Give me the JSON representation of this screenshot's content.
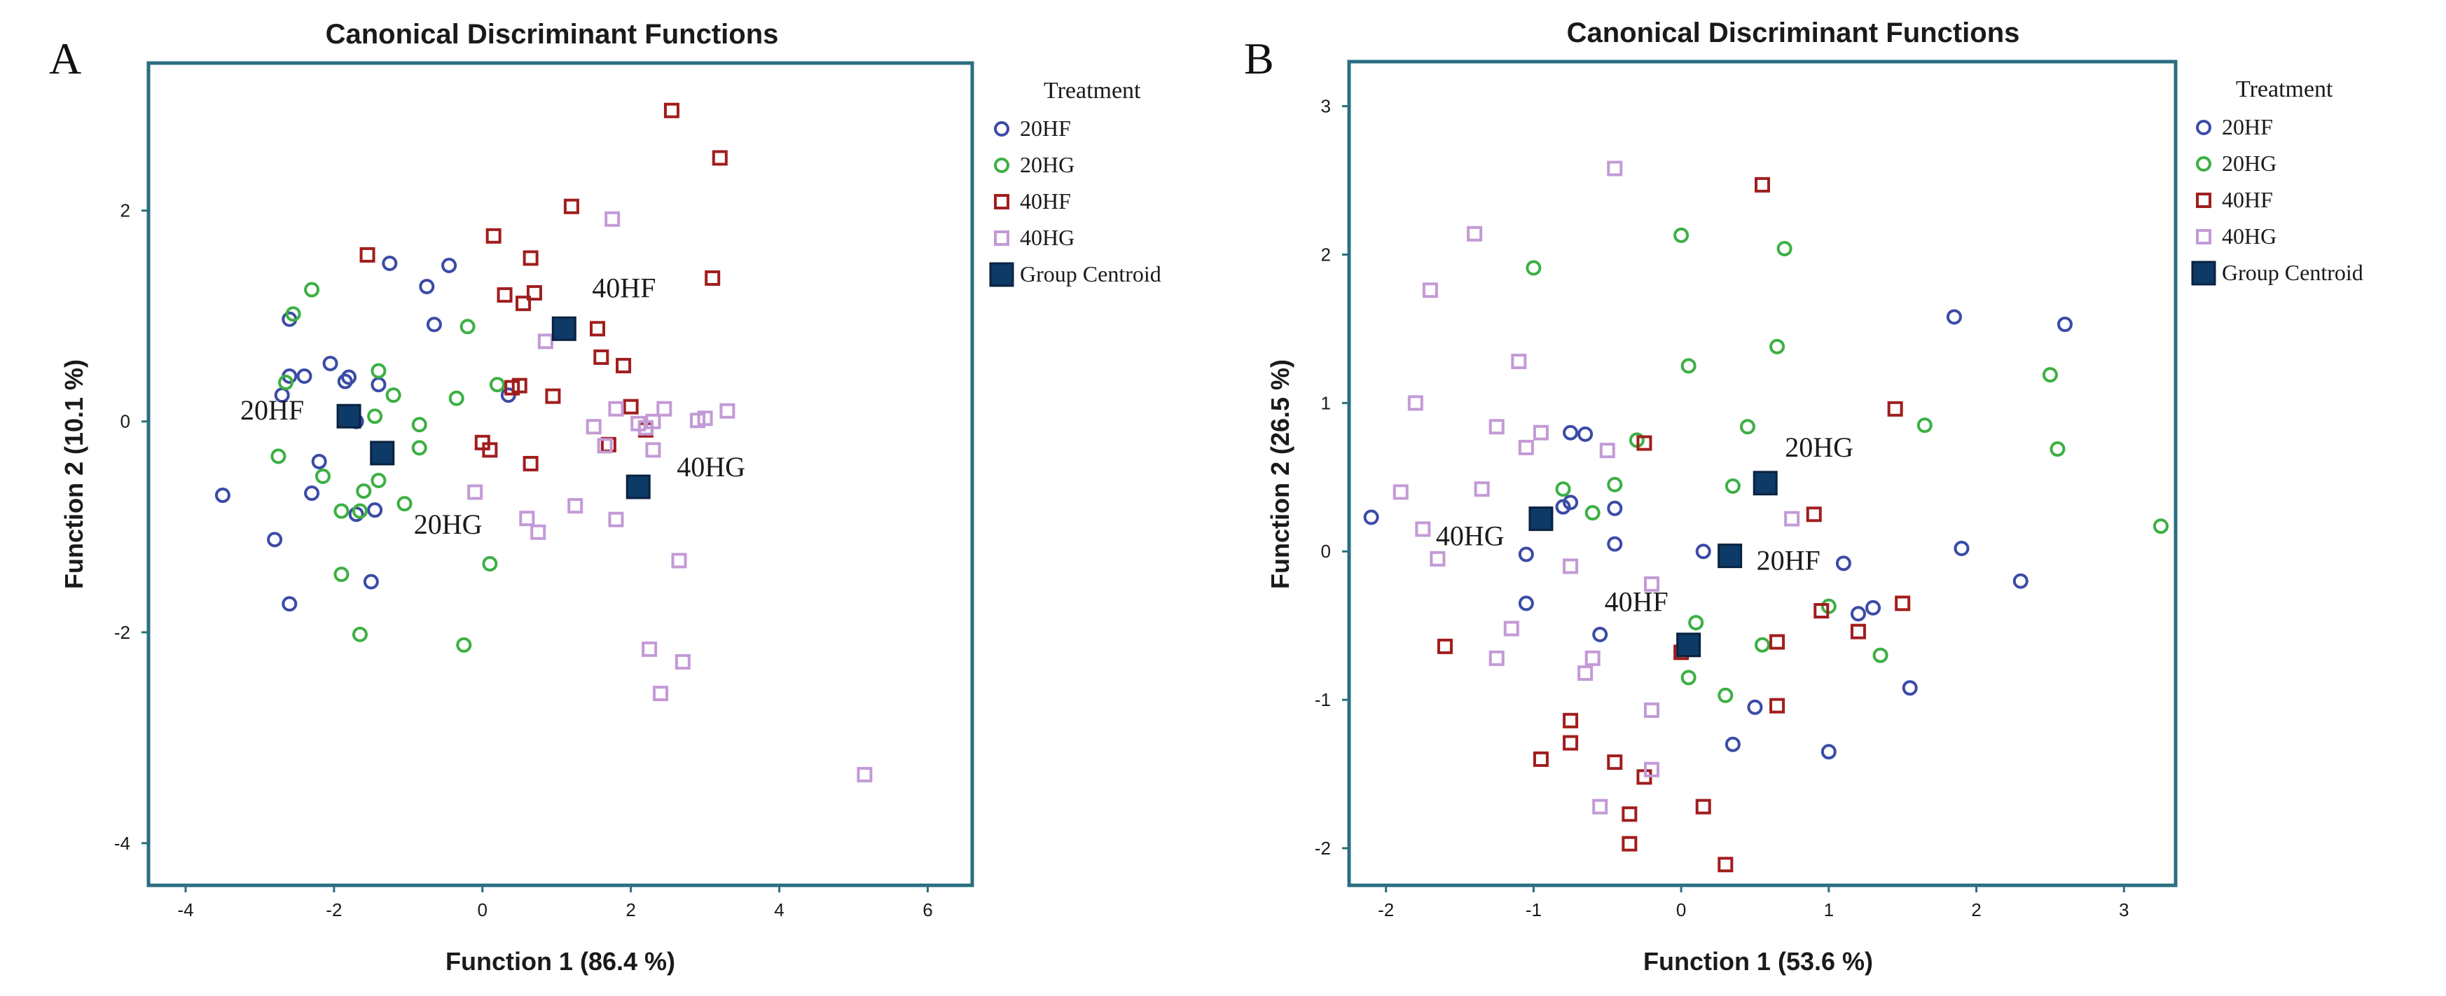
{
  "figure": {
    "legend_title": "Treatment",
    "legend_items": [
      {
        "name": "20HF",
        "marker": "circle",
        "color": "#3b4ba6"
      },
      {
        "name": "20HG",
        "marker": "circle",
        "color": "#3cb043"
      },
      {
        "name": "40HF",
        "marker": "square",
        "color": "#a11d1d"
      },
      {
        "name": "40HG",
        "marker": "square",
        "color": "#c39ad6"
      },
      {
        "name": "Group Centroid",
        "marker": "filled-square",
        "color": "#0d3a66"
      }
    ]
  },
  "chart_data": [
    {
      "panel_label": "A",
      "type": "scatter",
      "title": "Canonical Discriminant Functions",
      "xlabel": "Function 1 (86.4 %)",
      "ylabel": "Function 2 (10.1 %)",
      "xlim": [
        -4.5,
        6.6
      ],
      "ylim": [
        -4.4,
        3.4
      ],
      "xticks": [
        -4,
        -2,
        0,
        2,
        4,
        6
      ],
      "yticks": [
        -4,
        -2,
        0,
        2
      ],
      "xtick_labels": [
        "-4",
        "-2",
        "0",
        "2",
        "4",
        "6"
      ],
      "ytick_labels": [
        "-4",
        "-2",
        "0",
        "2"
      ],
      "series": [
        {
          "name": "20HF",
          "points": [
            [
              -3.5,
              -0.7
            ],
            [
              -2.8,
              -1.12
            ],
            [
              -2.6,
              -1.73
            ],
            [
              -2.7,
              0.25
            ],
            [
              -2.6,
              0.97
            ],
            [
              -2.6,
              0.43
            ],
            [
              -2.4,
              0.43
            ],
            [
              -2.3,
              -0.68
            ],
            [
              -2.2,
              -0.38
            ],
            [
              -2.05,
              0.55
            ],
            [
              -1.85,
              0.38
            ],
            [
              -1.7,
              0.0
            ],
            [
              -1.7,
              -0.88
            ],
            [
              -1.5,
              -1.52
            ],
            [
              -1.45,
              -0.84
            ],
            [
              -1.4,
              0.35
            ],
            [
              -1.25,
              1.5
            ],
            [
              -0.75,
              1.28
            ],
            [
              -0.65,
              0.92
            ],
            [
              -0.45,
              1.48
            ],
            [
              0.35,
              0.25
            ],
            [
              -1.8,
              0.42
            ]
          ]
        },
        {
          "name": "20HG",
          "points": [
            [
              -2.3,
              1.25
            ],
            [
              -2.55,
              1.02
            ],
            [
              -2.65,
              0.37
            ],
            [
              -2.75,
              -0.33
            ],
            [
              -2.15,
              -0.52
            ],
            [
              -1.9,
              -0.85
            ],
            [
              -1.9,
              -1.45
            ],
            [
              -1.65,
              -0.85
            ],
            [
              -1.6,
              -0.66
            ],
            [
              -1.65,
              -2.02
            ],
            [
              -1.4,
              -0.56
            ],
            [
              -1.45,
              0.05
            ],
            [
              -1.4,
              0.48
            ],
            [
              -1.2,
              0.25
            ],
            [
              -1.05,
              -0.78
            ],
            [
              -0.85,
              -0.03
            ],
            [
              -0.85,
              -0.25
            ],
            [
              -0.35,
              0.22
            ],
            [
              -0.2,
              0.9
            ],
            [
              0.2,
              0.35
            ],
            [
              0.1,
              -1.35
            ],
            [
              -0.25,
              -2.12
            ]
          ]
        },
        {
          "name": "40HF",
          "points": [
            [
              -1.55,
              1.58
            ],
            [
              0.15,
              1.76
            ],
            [
              0.65,
              1.55
            ],
            [
              0.7,
              1.22
            ],
            [
              0.55,
              1.12
            ],
            [
              0.3,
              1.2
            ],
            [
              0.5,
              0.34
            ],
            [
              0.4,
              0.32
            ],
            [
              0.0,
              -0.2
            ],
            [
              0.1,
              -0.27
            ],
            [
              0.65,
              -0.4
            ],
            [
              0.95,
              0.24
            ],
            [
              1.2,
              2.04
            ],
            [
              1.55,
              0.88
            ],
            [
              1.6,
              0.61
            ],
            [
              1.7,
              -0.22
            ],
            [
              1.9,
              0.53
            ],
            [
              2.0,
              0.14
            ],
            [
              2.2,
              -0.08
            ],
            [
              2.55,
              2.95
            ],
            [
              3.1,
              1.36
            ],
            [
              3.2,
              2.5
            ]
          ]
        },
        {
          "name": "40HG",
          "points": [
            [
              -0.1,
              -0.67
            ],
            [
              0.85,
              0.76
            ],
            [
              1.25,
              -0.8
            ],
            [
              0.6,
              -0.92
            ],
            [
              0.75,
              -1.05
            ],
            [
              1.5,
              -0.05
            ],
            [
              1.65,
              -0.23
            ],
            [
              1.8,
              0.12
            ],
            [
              1.75,
              1.92
            ],
            [
              1.8,
              -0.93
            ],
            [
              2.1,
              -0.02
            ],
            [
              2.2,
              -0.06
            ],
            [
              2.3,
              -0.27
            ],
            [
              2.3,
              0.0
            ],
            [
              2.45,
              0.12
            ],
            [
              2.25,
              -2.16
            ],
            [
              2.4,
              -2.58
            ],
            [
              2.65,
              -1.32
            ],
            [
              2.7,
              -2.28
            ],
            [
              2.9,
              0.01
            ],
            [
              3.0,
              0.03
            ],
            [
              3.3,
              0.1
            ],
            [
              5.15,
              -3.35
            ]
          ]
        },
        {
          "name": "Group Centroid",
          "points": [
            [
              -1.8,
              0.05
            ],
            [
              -1.35,
              -0.3
            ],
            [
              1.1,
              0.88
            ],
            [
              2.1,
              -0.62
            ]
          ],
          "labels": [
            "20HF",
            "20HG",
            "40HF",
            "40HG"
          ]
        }
      ]
    },
    {
      "panel_label": "B",
      "type": "scatter",
      "title": "Canonical Discriminant Functions",
      "xlabel": "Function 1 (53.6 %)",
      "ylabel": "Function 2 (26.5 %)",
      "xlim": [
        -2.25,
        3.35
      ],
      "ylim": [
        -2.25,
        3.3
      ],
      "xticks": [
        -2,
        -1,
        0,
        1,
        2,
        3
      ],
      "yticks": [
        -2,
        -1,
        0,
        1,
        2,
        3
      ],
      "xtick_labels": [
        "-2",
        "-1",
        "0",
        "1",
        "2",
        "3"
      ],
      "ytick_labels": [
        "-2",
        "-1",
        "0",
        "1",
        "2",
        "3"
      ],
      "series": [
        {
          "name": "20HF",
          "points": [
            [
              -2.1,
              0.23
            ],
            [
              -0.75,
              0.8
            ],
            [
              -0.65,
              0.79
            ],
            [
              -0.8,
              0.3
            ],
            [
              -0.75,
              0.33
            ],
            [
              -0.45,
              0.29
            ],
            [
              -1.05,
              -0.02
            ],
            [
              -1.05,
              -0.35
            ],
            [
              -0.45,
              0.05
            ],
            [
              -0.55,
              -0.56
            ],
            [
              0.15,
              0.0
            ],
            [
              0.35,
              -1.3
            ],
            [
              0.5,
              -1.05
            ],
            [
              1.0,
              -1.35
            ],
            [
              1.1,
              -0.08
            ],
            [
              1.2,
              -0.42
            ],
            [
              1.3,
              -0.38
            ],
            [
              1.55,
              -0.92
            ],
            [
              1.9,
              0.02
            ],
            [
              1.85,
              1.58
            ],
            [
              2.3,
              -0.2
            ],
            [
              2.6,
              1.53
            ]
          ]
        },
        {
          "name": "20HG",
          "points": [
            [
              -1.0,
              1.91
            ],
            [
              -0.8,
              0.42
            ],
            [
              -0.6,
              0.26
            ],
            [
              -0.45,
              0.45
            ],
            [
              -0.3,
              0.75
            ],
            [
              0.0,
              2.13
            ],
            [
              0.05,
              1.25
            ],
            [
              0.35,
              0.44
            ],
            [
              0.45,
              0.84
            ],
            [
              0.65,
              1.38
            ],
            [
              0.7,
              2.04
            ],
            [
              0.1,
              -0.48
            ],
            [
              0.05,
              -0.85
            ],
            [
              0.3,
              -0.97
            ],
            [
              0.55,
              -0.63
            ],
            [
              1.0,
              -0.37
            ],
            [
              1.35,
              -0.7
            ],
            [
              1.65,
              0.85
            ],
            [
              2.5,
              1.19
            ],
            [
              2.55,
              0.69
            ],
            [
              3.25,
              0.17
            ]
          ]
        },
        {
          "name": "40HF",
          "points": [
            [
              -1.6,
              -0.64
            ],
            [
              -0.95,
              -1.4
            ],
            [
              -0.75,
              -1.14
            ],
            [
              -0.75,
              -1.29
            ],
            [
              -0.45,
              -1.42
            ],
            [
              -0.35,
              -1.77
            ],
            [
              -0.35,
              -1.97
            ],
            [
              -0.25,
              -1.52
            ],
            [
              -0.25,
              0.73
            ],
            [
              0.0,
              -0.68
            ],
            [
              0.15,
              -1.72
            ],
            [
              0.3,
              -2.11
            ],
            [
              0.55,
              2.47
            ],
            [
              0.65,
              -0.61
            ],
            [
              0.65,
              -1.04
            ],
            [
              0.9,
              0.25
            ],
            [
              0.95,
              -0.4
            ],
            [
              1.2,
              -0.54
            ],
            [
              1.45,
              0.96
            ],
            [
              1.5,
              -0.35
            ]
          ]
        },
        {
          "name": "40HG",
          "points": [
            [
              -1.9,
              0.4
            ],
            [
              -1.8,
              1.0
            ],
            [
              -1.7,
              1.76
            ],
            [
              -1.75,
              0.15
            ],
            [
              -1.65,
              -0.05
            ],
            [
              -1.4,
              2.14
            ],
            [
              -1.35,
              0.42
            ],
            [
              -1.25,
              0.84
            ],
            [
              -1.25,
              -0.72
            ],
            [
              -1.1,
              1.28
            ],
            [
              -1.05,
              0.7
            ],
            [
              -1.15,
              -0.52
            ],
            [
              -0.95,
              0.8
            ],
            [
              -0.75,
              -0.1
            ],
            [
              -0.65,
              -0.82
            ],
            [
              -0.6,
              -0.72
            ],
            [
              -0.5,
              0.68
            ],
            [
              -0.45,
              2.58
            ],
            [
              -0.2,
              -0.22
            ],
            [
              -0.2,
              -1.07
            ],
            [
              -0.2,
              -1.47
            ],
            [
              -0.55,
              -1.72
            ],
            [
              0.75,
              0.22
            ]
          ]
        },
        {
          "name": "Group Centroid",
          "points": [
            [
              0.57,
              0.46
            ],
            [
              0.33,
              -0.03
            ],
            [
              0.05,
              -0.63
            ],
            [
              -0.95,
              0.22
            ]
          ],
          "labels": [
            "20HG",
            "20HF",
            "40HF",
            "40HG"
          ]
        }
      ]
    }
  ]
}
